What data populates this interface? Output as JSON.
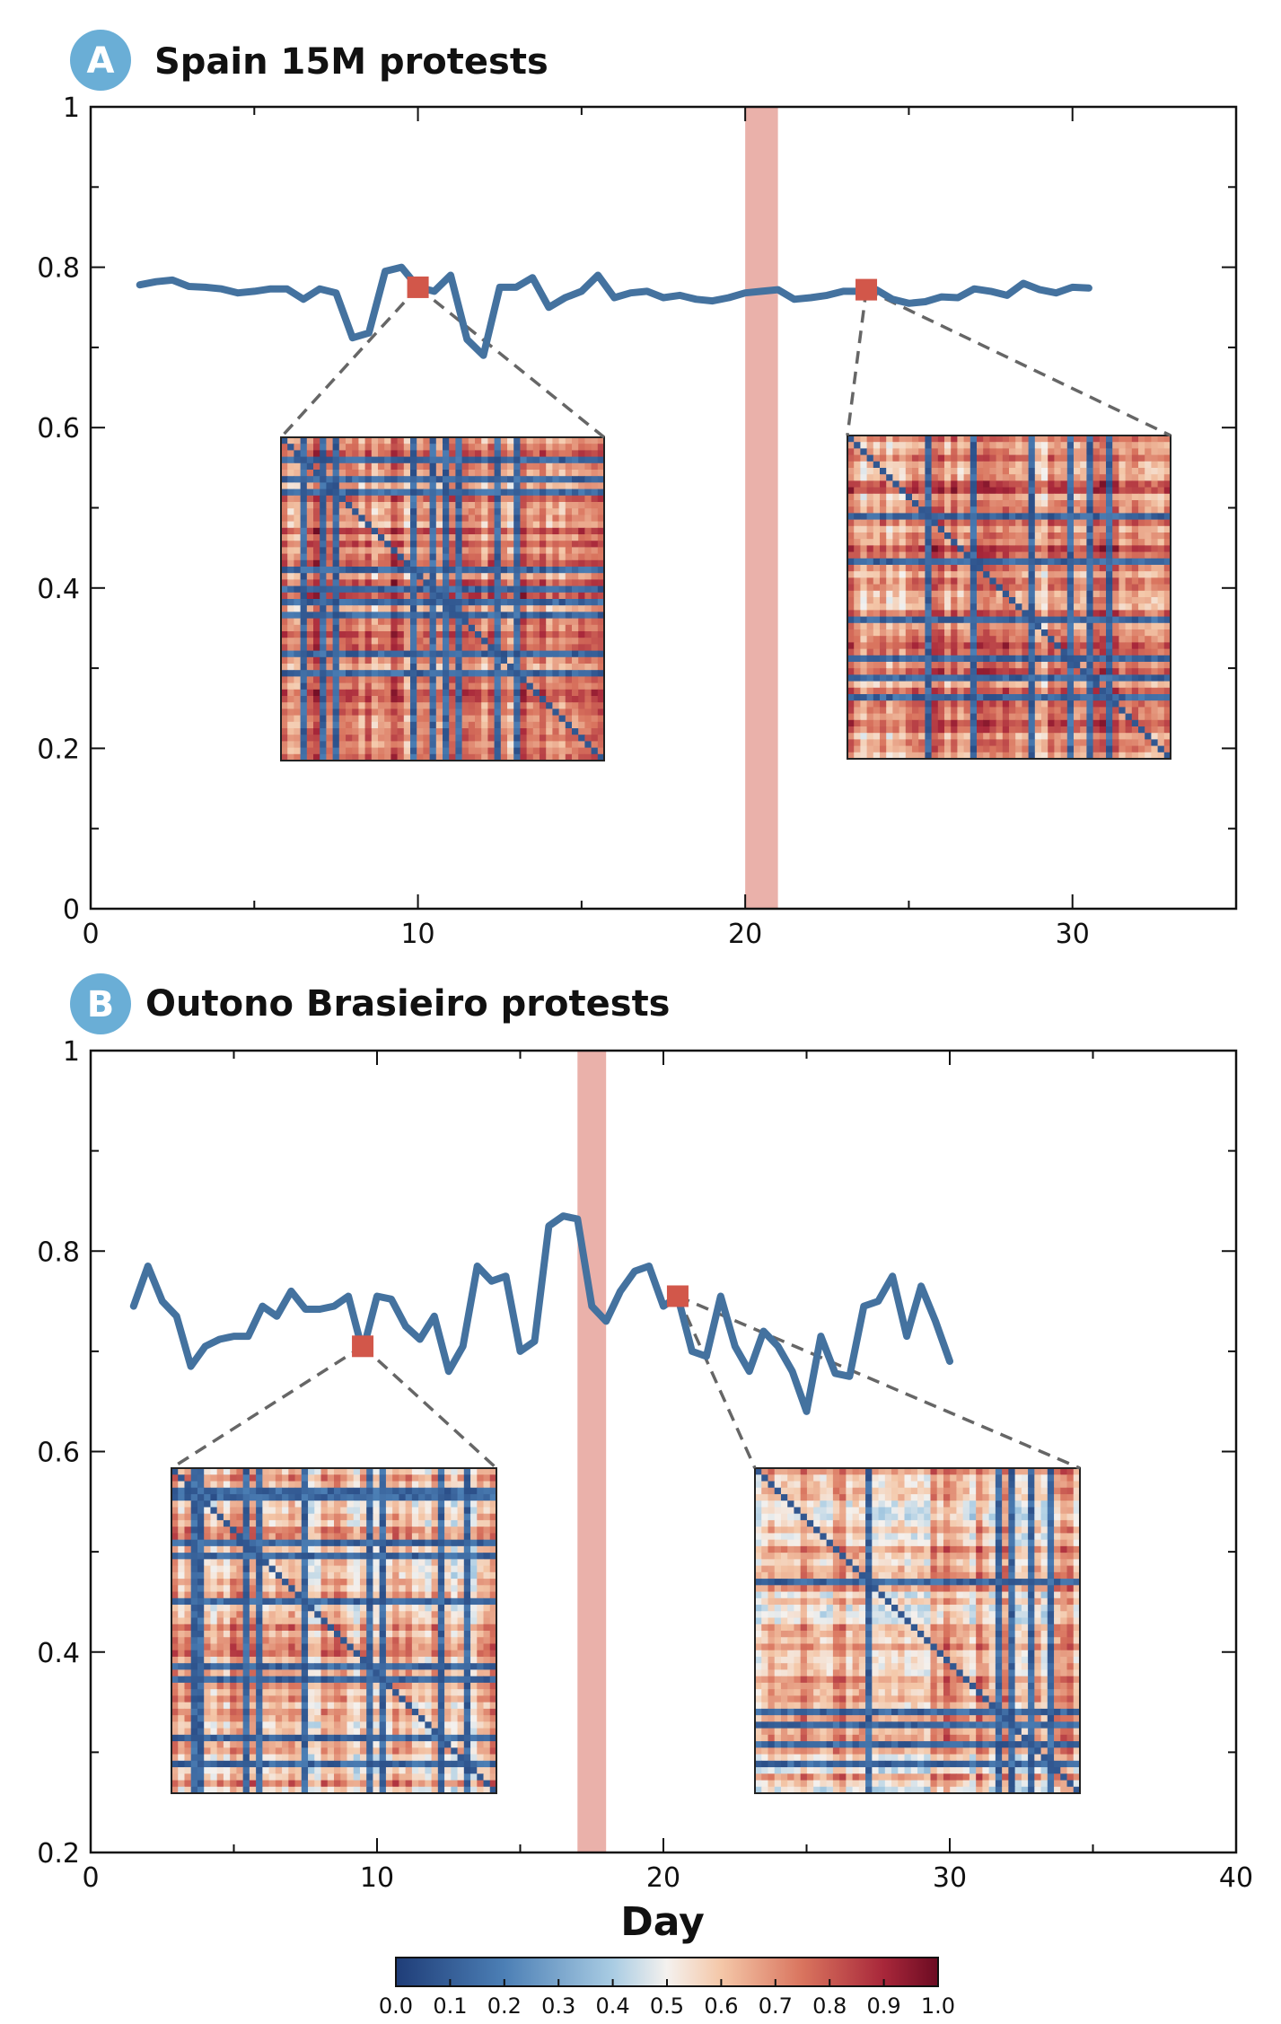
{
  "colors": {
    "line": "#44729f",
    "highlight_band": "#eab1aa",
    "marker": "#d2574a",
    "dash": "#666666",
    "badge": "#6aaed6"
  },
  "chart_data": [
    {
      "type": "line",
      "panel_letter": "A",
      "title": "Spain 15M protests",
      "xlabel": "",
      "ylabel": "",
      "xlim": [
        0,
        35
      ],
      "ylim": [
        0,
        1
      ],
      "x_ticks": [
        0,
        10,
        20,
        30
      ],
      "y_ticks": [
        0,
        0.2,
        0.4,
        0.6,
        0.8,
        1
      ],
      "y_tick_labels": [
        "0",
        "0.2",
        "0.4",
        "0.6",
        "0.8",
        "1"
      ],
      "highlight_band": [
        20,
        21
      ],
      "series": [
        {
          "name": "correlation",
          "x": [
            1.5,
            2,
            2.5,
            3,
            3.5,
            4,
            4.5,
            5,
            5.5,
            6,
            6.5,
            7,
            7.5,
            8,
            8.5,
            9,
            9.5,
            10,
            10.5,
            11,
            11.5,
            12,
            12.5,
            13,
            13.5,
            14,
            14.5,
            15,
            15.5,
            16,
            16.5,
            17,
            17.5,
            18,
            18.5,
            19,
            19.5,
            20,
            20.5,
            21,
            21.5,
            22,
            22.5,
            23,
            23.5,
            24,
            24.5,
            25,
            25.5,
            26,
            26.5,
            27,
            27.5,
            28,
            28.5,
            29,
            29.5,
            30,
            30.5
          ],
          "values": [
            0.778,
            0.782,
            0.784,
            0.776,
            0.775,
            0.773,
            0.768,
            0.77,
            0.773,
            0.773,
            0.76,
            0.773,
            0.768,
            0.712,
            0.718,
            0.795,
            0.8,
            0.775,
            0.77,
            0.79,
            0.71,
            0.69,
            0.775,
            0.775,
            0.787,
            0.75,
            0.762,
            0.77,
            0.79,
            0.762,
            0.768,
            0.77,
            0.762,
            0.765,
            0.76,
            0.758,
            0.762,
            0.768,
            0.77,
            0.772,
            0.76,
            0.762,
            0.765,
            0.77,
            0.77,
            0.772,
            0.76,
            0.755,
            0.757,
            0.763,
            0.762,
            0.773,
            0.77,
            0.765,
            0.78,
            0.772,
            0.768,
            0.775,
            0.774
          ]
        }
      ],
      "markers": [
        {
          "x": 10,
          "y": 0.775
        },
        {
          "x": 23.7,
          "y": 0.772
        }
      ],
      "insets": [
        {
          "name": "Day 10 correlation matrix",
          "source_x": 10
        },
        {
          "name": "Day 23.7 correlation matrix",
          "source_x": 23.7
        }
      ]
    },
    {
      "type": "line",
      "panel_letter": "B",
      "title": "Outono Brasieiro protests",
      "xlabel": "Day",
      "ylabel": "",
      "xlim": [
        0,
        40
      ],
      "ylim": [
        0.2,
        1
      ],
      "x_ticks": [
        0,
        10,
        20,
        30,
        40
      ],
      "y_ticks": [
        0.2,
        0.4,
        0.6,
        0.8,
        1
      ],
      "y_tick_labels": [
        "0.2",
        "0.4",
        "0.6",
        "0.8",
        "1"
      ],
      "highlight_band": [
        17,
        18
      ],
      "series": [
        {
          "name": "correlation",
          "x": [
            1.5,
            2,
            2.5,
            3,
            3.5,
            4,
            4.5,
            5,
            5.5,
            6,
            6.5,
            7,
            7.5,
            8,
            8.5,
            9,
            9.5,
            10,
            10.5,
            11,
            11.5,
            12,
            12.5,
            13,
            13.5,
            14,
            14.5,
            15,
            15.5,
            16,
            16.5,
            17,
            17.5,
            18,
            18.5,
            19,
            19.5,
            20,
            20.5,
            21,
            21.5,
            22,
            22.5,
            23,
            23.5,
            24,
            24.5,
            25,
            25.5,
            26,
            26.5,
            27,
            27.5,
            28,
            28.5,
            29,
            29.5,
            30
          ],
          "values": [
            0.745,
            0.785,
            0.75,
            0.735,
            0.685,
            0.705,
            0.712,
            0.715,
            0.715,
            0.745,
            0.735,
            0.76,
            0.742,
            0.742,
            0.745,
            0.755,
            0.7,
            0.755,
            0.752,
            0.725,
            0.712,
            0.735,
            0.68,
            0.705,
            0.785,
            0.77,
            0.775,
            0.7,
            0.71,
            0.825,
            0.835,
            0.832,
            0.745,
            0.73,
            0.76,
            0.78,
            0.785,
            0.745,
            0.755,
            0.7,
            0.695,
            0.755,
            0.705,
            0.68,
            0.72,
            0.705,
            0.68,
            0.64,
            0.715,
            0.678,
            0.675,
            0.745,
            0.75,
            0.775,
            0.715,
            0.765,
            0.73,
            0.69
          ]
        }
      ],
      "markers": [
        {
          "x": 9.5,
          "y": 0.705
        },
        {
          "x": 20.5,
          "y": 0.755
        }
      ],
      "insets": [
        {
          "name": "Day 9.5 correlation matrix",
          "source_x": 9.5
        },
        {
          "name": "Day 20.5 correlation matrix",
          "source_x": 20.5
        }
      ]
    }
  ],
  "colorbar": {
    "ticks": [
      "0.0",
      "0.1",
      "0.2",
      "0.3",
      "0.4",
      "0.5",
      "0.6",
      "0.7",
      "0.8",
      "0.9",
      "1.0"
    ]
  }
}
